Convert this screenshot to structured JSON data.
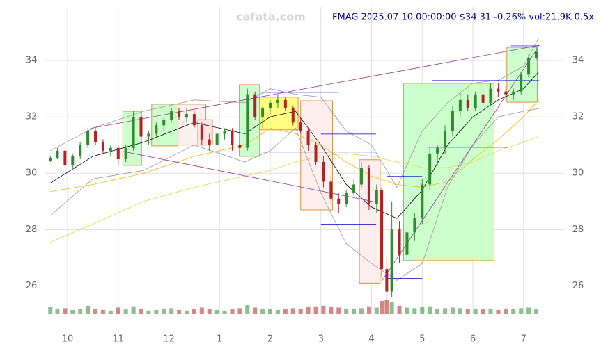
{
  "chart_data": {
    "type": "candlestick",
    "title": "FMAG 2025.07.10 00:00:00 $34.31 -0.26% vol:21.9K 0.5x",
    "watermark": "cafata.com",
    "up_color": "#2e8b2e",
    "down_color": "#b22222",
    "x": [
      9.66,
      9.8,
      9.95,
      10.1,
      10.25,
      10.4,
      10.55,
      10.7,
      10.85,
      11.0,
      11.15,
      11.3,
      11.45,
      11.6,
      11.75,
      11.9,
      12.05,
      12.2,
      12.35,
      12.5,
      12.65,
      12.8,
      12.95,
      13.1,
      13.25,
      13.4,
      13.55,
      13.7,
      13.85,
      14.0,
      14.15,
      14.3,
      14.45,
      14.6,
      14.75,
      14.9,
      15.05,
      15.2,
      15.35,
      15.5,
      15.65,
      15.8,
      15.95,
      16.1,
      16.2,
      16.3,
      16.4,
      16.55,
      16.7,
      16.85,
      17.0,
      17.15,
      17.3,
      17.45,
      17.6,
      17.75,
      17.9,
      18.05,
      18.2,
      18.35,
      18.5,
      18.65,
      18.8,
      18.95,
      19.1,
      19.25
    ],
    "open": [
      30.45,
      30.55,
      30.8,
      30.3,
      30.6,
      31.0,
      31.5,
      31.1,
      30.8,
      30.9,
      30.5,
      30.9,
      32.0,
      31.3,
      31.4,
      31.7,
      31.9,
      32.2,
      32.0,
      32.1,
      31.7,
      31.2,
      31.0,
      31.4,
      31.5,
      31.0,
      30.9,
      32.8,
      32.0,
      32.3,
      32.5,
      32.6,
      32.3,
      31.8,
      31.5,
      31.0,
      30.4,
      29.7,
      29.1,
      28.9,
      29.3,
      29.6,
      30.2,
      28.9,
      29.4,
      26.6,
      25.8,
      28.0,
      27.1,
      27.9,
      28.4,
      29.6,
      30.7,
      30.9,
      31.5,
      32.2,
      32.6,
      32.3,
      32.8,
      32.5,
      33.0,
      32.9,
      32.8,
      32.9,
      33.5,
      34.1
    ],
    "high": [
      30.6,
      30.9,
      30.9,
      30.7,
      31.1,
      31.6,
      31.6,
      31.2,
      31.0,
      31.0,
      31.0,
      32.2,
      32.1,
      31.5,
      31.8,
      32.0,
      32.3,
      32.3,
      32.3,
      32.2,
      31.8,
      31.4,
      31.5,
      31.6,
      31.6,
      31.3,
      33.0,
      32.9,
      32.4,
      32.6,
      32.8,
      32.7,
      32.4,
      32.0,
      31.6,
      31.1,
      30.6,
      29.9,
      29.3,
      29.4,
      29.8,
      30.4,
      30.3,
      29.6,
      29.5,
      27.0,
      29.0,
      28.3,
      28.1,
      28.6,
      29.8,
      30.9,
      31.0,
      31.7,
      32.4,
      32.9,
      32.8,
      32.9,
      33.0,
      33.2,
      33.2,
      33.1,
      33.0,
      33.6,
      34.2,
      34.5
    ],
    "low": [
      30.4,
      30.5,
      30.2,
      30.2,
      30.5,
      30.9,
      31.0,
      30.7,
      30.6,
      30.3,
      30.4,
      30.8,
      31.2,
      31.0,
      31.3,
      31.5,
      31.8,
      31.9,
      31.8,
      31.6,
      31.0,
      30.8,
      30.9,
      31.2,
      30.8,
      30.6,
      30.8,
      31.9,
      31.6,
      32.1,
      32.3,
      32.2,
      31.7,
      31.4,
      30.8,
      30.3,
      29.5,
      28.9,
      28.6,
      28.8,
      29.2,
      29.5,
      28.7,
      28.6,
      26.3,
      25.3,
      25.6,
      26.8,
      26.9,
      27.6,
      28.2,
      29.4,
      30.3,
      30.7,
      31.3,
      32.0,
      32.2,
      32.2,
      32.4,
      32.4,
      32.7,
      32.6,
      32.6,
      32.8,
      33.4,
      34.0
    ],
    "close": [
      30.55,
      30.8,
      30.3,
      30.6,
      31.0,
      31.5,
      31.1,
      30.8,
      30.9,
      30.5,
      30.9,
      32.0,
      31.3,
      31.4,
      31.7,
      31.9,
      32.2,
      32.0,
      32.1,
      31.7,
      31.2,
      31.0,
      31.4,
      31.5,
      31.0,
      30.9,
      32.8,
      32.0,
      32.3,
      32.5,
      32.6,
      32.3,
      31.8,
      31.5,
      31.0,
      30.4,
      29.7,
      29.1,
      28.9,
      29.3,
      29.6,
      30.2,
      28.9,
      29.4,
      26.6,
      25.8,
      28.0,
      27.1,
      27.9,
      28.4,
      29.6,
      30.7,
      30.9,
      31.5,
      32.2,
      32.6,
      32.3,
      32.8,
      32.5,
      33.0,
      32.9,
      32.8,
      32.9,
      33.5,
      34.1,
      34.31
    ],
    "volume": [
      60,
      40,
      50,
      35,
      45,
      70,
      40,
      35,
      30,
      55,
      40,
      65,
      45,
      30,
      35,
      40,
      50,
      35,
      30,
      45,
      55,
      40,
      35,
      30,
      45,
      50,
      75,
      55,
      40,
      45,
      35,
      40,
      50,
      45,
      60,
      65,
      70,
      60,
      55,
      40,
      45,
      50,
      65,
      55,
      110,
      120,
      100,
      70,
      55,
      50,
      60,
      65,
      45,
      50,
      55,
      50,
      45,
      40,
      40,
      45,
      35,
      40,
      45,
      50,
      55,
      40
    ],
    "vlim": [
      0,
      150
    ],
    "lines": [
      {
        "color": "#000000",
        "x": [
          9.66,
          10.5,
          11.5,
          12.5,
          13.5,
          14.0,
          14.5,
          15.0,
          15.5,
          16.0,
          16.5,
          17.0,
          17.5,
          18.0,
          18.5,
          19.0,
          19.3
        ],
        "values": [
          29.65,
          30.6,
          31.1,
          31.8,
          31.4,
          32.0,
          32.2,
          31.0,
          29.6,
          28.8,
          28.4,
          29.4,
          31.0,
          32.0,
          32.6,
          33.0,
          33.6
        ]
      },
      {
        "color": "#f2b705",
        "x": [
          9.66,
          10.5,
          11.5,
          12.5,
          13.5,
          14.0,
          14.5,
          15.0,
          15.5,
          16.0,
          16.5,
          17.0,
          17.5,
          18.0,
          18.5,
          19.0,
          19.3
        ],
        "values": [
          29.35,
          29.6,
          30.0,
          30.6,
          31.0,
          31.6,
          31.4,
          31.0,
          30.4,
          29.9,
          29.6,
          29.5,
          29.7,
          30.5,
          31.2,
          32.0,
          32.6
        ]
      },
      {
        "color": "#f5d142",
        "x": [
          9.66,
          10.5,
          11.5,
          12.5,
          13.5,
          14.0,
          14.5,
          15.0,
          15.5,
          16.0,
          16.5,
          17.0,
          17.5,
          18.0,
          18.5,
          19.0,
          19.3
        ],
        "values": [
          27.55,
          28.2,
          29.0,
          29.5,
          29.9,
          30.1,
          30.4,
          30.6,
          30.7,
          30.6,
          30.4,
          30.2,
          30.2,
          30.4,
          30.8,
          31.1,
          31.3
        ]
      },
      {
        "color": "#999999",
        "x": [
          9.66,
          10.5,
          11.5,
          12.5,
          13.5,
          14.0,
          14.5,
          15.0,
          15.5,
          16.0,
          16.5,
          17.0,
          17.5,
          18.0,
          18.5,
          19.0,
          19.3
        ],
        "values": [
          30.8,
          31.6,
          32.2,
          32.6,
          32.5,
          33.0,
          32.8,
          32.7,
          31.5,
          31.0,
          29.5,
          31.5,
          32.5,
          33.2,
          33.3,
          33.8,
          34.8
        ]
      },
      {
        "color": "#999999",
        "x": [
          9.66,
          10.5,
          11.5,
          12.5,
          13.5,
          14.0,
          14.5,
          15.0,
          15.5,
          16.0,
          16.5,
          17.0,
          17.5,
          18.0,
          18.5,
          19.0,
          19.3
        ],
        "values": [
          28.5,
          29.8,
          30.1,
          31.0,
          30.4,
          30.8,
          31.6,
          29.3,
          27.5,
          26.8,
          26.2,
          26.8,
          29.5,
          31.0,
          32.0,
          32.2,
          32.3
        ]
      }
    ],
    "zones": [
      {
        "x": [
          11.09,
          11.46
        ],
        "y": [
          30.28,
          32.2
        ],
        "color": "#ccffcc"
      },
      {
        "x": [
          11.66,
          12.18
        ],
        "y": [
          30.97,
          32.45
        ],
        "color": "#ccffcc"
      },
      {
        "x": [
          12.18,
          12.73
        ],
        "y": [
          31.0,
          32.45
        ],
        "color": "#fff0f0"
      },
      {
        "x": [
          12.57,
          12.86
        ],
        "y": [
          31.0,
          31.9
        ],
        "color": "#ffe4e4"
      },
      {
        "x": [
          13.39,
          13.79
        ],
        "y": [
          30.6,
          33.14
        ],
        "color": "#ccffcc"
      },
      {
        "x": [
          13.79,
          14.55
        ],
        "y": [
          31.54,
          32.7
        ],
        "color": "#ffff80"
      },
      {
        "x": [
          14.6,
          15.23
        ],
        "y": [
          28.7,
          32.57
        ],
        "color": "#ffeeee"
      },
      {
        "x": [
          15.76,
          16.17
        ],
        "y": [
          26.1,
          30.48
        ],
        "color": "#ffeeee"
      },
      {
        "x": [
          16.63,
          18.42
        ],
        "y": [
          26.9,
          33.19
        ],
        "color": "#ccffcc"
      },
      {
        "x": [
          18.67,
          19.27
        ],
        "y": [
          32.52,
          34.47
        ],
        "color": "#ccffcc"
      }
    ],
    "trendlines": [
      {
        "x": [
          10.45,
          19.31
        ],
        "y": [
          31.59,
          34.54
        ],
        "color": "#993399"
      },
      {
        "x": [
          11.11,
          16.02
        ],
        "y": [
          30.77,
          29.0
        ],
        "color": "#993399"
      },
      {
        "x": [
          16.2,
          19.27
        ],
        "y": [
          26.17,
          34.42
        ],
        "color": "#993399"
      }
    ],
    "levels": [
      {
        "x": [
          13.83,
          15.33
        ],
        "y": 32.87
      },
      {
        "x": [
          15.0,
          16.09
        ],
        "y": 31.39
      },
      {
        "x": [
          13.83,
          16.09
        ],
        "y": 30.75
      },
      {
        "x": [
          16.3,
          17.0
        ],
        "y": 29.89
      },
      {
        "x": [
          15.0,
          16.09
        ],
        "y": 28.19
      },
      {
        "x": [
          16.3,
          17.0
        ],
        "y": 26.27
      },
      {
        "x": [
          17.1,
          18.7
        ],
        "y": 30.92
      },
      {
        "x": [
          17.2,
          19.31
        ],
        "y": 33.29
      },
      {
        "x": [
          18.75,
          19.31
        ],
        "y": 34.52
      }
    ],
    "level_color": "#0000cc",
    "xlim": [
      9.56,
      19.8
    ],
    "ylim": [
      25.0,
      35.9
    ],
    "xticks": [
      {
        "value": 10,
        "label": "10"
      },
      {
        "value": 11,
        "label": "11"
      },
      {
        "value": 12,
        "label": "12"
      },
      {
        "value": 13,
        "label": "1"
      },
      {
        "value": 14,
        "label": "2"
      },
      {
        "value": 15,
        "label": "3"
      },
      {
        "value": 16,
        "label": "4"
      },
      {
        "value": 17,
        "label": "5"
      },
      {
        "value": 18,
        "label": "6"
      },
      {
        "value": 19,
        "label": "7"
      }
    ],
    "yticks": [
      26,
      28,
      30,
      32,
      34
    ],
    "grid": true
  }
}
